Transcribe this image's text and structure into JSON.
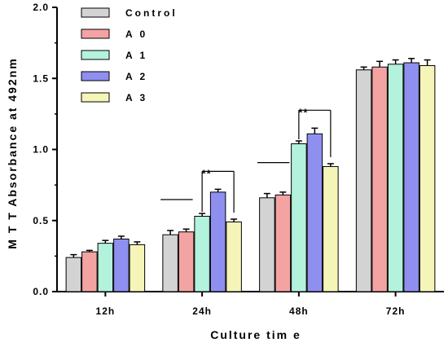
{
  "chart_data": {
    "type": "bar",
    "title": "",
    "xlabel": "Culture tim e",
    "ylabel": "M T T Absorbance at 492nm",
    "ylim": [
      0,
      2.0
    ],
    "yticks": [
      "0.0",
      "0.5",
      "1.0",
      "1.5",
      "2.0"
    ],
    "categories": [
      "12h",
      "24h",
      "48h",
      "72h"
    ],
    "series": [
      {
        "name": "Control",
        "color": "#d3d3d3",
        "values": [
          0.24,
          0.4,
          0.66,
          1.56
        ],
        "errors": [
          0.02,
          0.03,
          0.03,
          0.02
        ]
      },
      {
        "name": "A 0",
        "color": "#f4a3a3",
        "values": [
          0.28,
          0.42,
          0.68,
          1.58
        ],
        "errors": [
          0.01,
          0.02,
          0.02,
          0.04
        ]
      },
      {
        "name": "A 1",
        "color": "#b3f2dc",
        "values": [
          0.34,
          0.53,
          1.04,
          1.6
        ],
        "errors": [
          0.02,
          0.02,
          0.02,
          0.03
        ]
      },
      {
        "name": "A 2",
        "color": "#8f8ff0",
        "values": [
          0.37,
          0.7,
          1.11,
          1.61
        ],
        "errors": [
          0.02,
          0.02,
          0.04,
          0.03
        ]
      },
      {
        "name": "A 3",
        "color": "#f5f5b8",
        "values": [
          0.33,
          0.49,
          0.88,
          1.59
        ],
        "errors": [
          0.02,
          0.02,
          0.02,
          0.04
        ]
      }
    ],
    "legend_position": "top-left",
    "significance": [
      {
        "category": "24h",
        "label": "**"
      },
      {
        "category": "48h",
        "label": "**"
      }
    ]
  }
}
